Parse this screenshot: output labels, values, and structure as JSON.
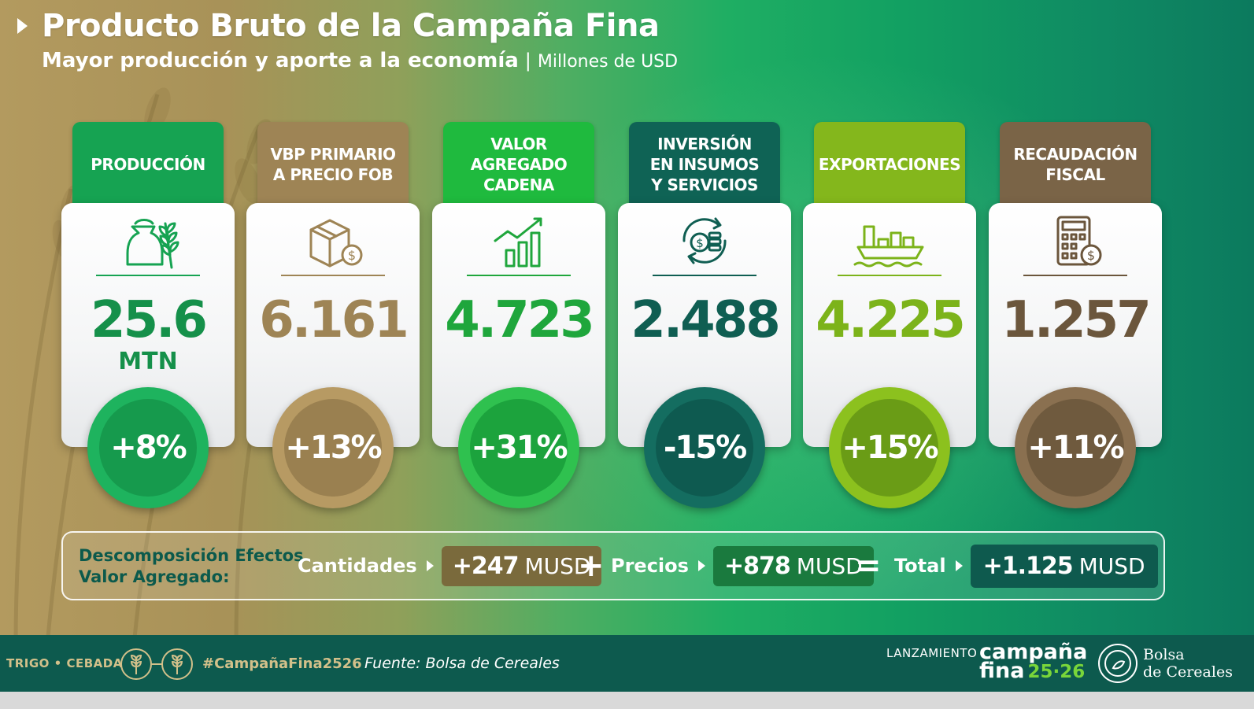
{
  "header": {
    "title": "Producto Bruto de la Campaña Fina",
    "subtitle": "Mayor producción y aporte a la economía",
    "subtitle_sep": "|",
    "subtitle_unit": "Millones de USD"
  },
  "cards": [
    {
      "label": "PRODUCCIÓN",
      "value": "25.6",
      "unit": "MTN",
      "change": "+8%",
      "icon": "sack-wheat-icon",
      "tab_color": "#16a352",
      "value_color": "#15904a"
    },
    {
      "label": "VBP PRIMARIO\nA PRECIO FOB",
      "value": "6.161",
      "unit": "",
      "change": "+13%",
      "icon": "box-dollar-icon",
      "tab_color": "#9e8455",
      "value_color": "#9e8455"
    },
    {
      "label": "VALOR\nAGREGADO\nCADENA",
      "value": "4.723",
      "unit": "",
      "change": "+31%",
      "icon": "bar-chart-growth-icon",
      "tab_color": "#1fba3e",
      "value_color": "#1fa63c"
    },
    {
      "label": "INVERSIÓN\nEN INSUMOS\nY SERVICIOS",
      "value": "2.488",
      "unit": "",
      "change": "-15%",
      "icon": "coins-cycle-icon",
      "tab_color": "#0f6355",
      "value_color": "#0f5e52"
    },
    {
      "label": "EXPORTACIONES",
      "value": "4.225",
      "unit": "",
      "change": "+15%",
      "icon": "cargo-ship-icon",
      "tab_color": "#84b71c",
      "value_color": "#7cb31a"
    },
    {
      "label": "RECAUDACIÓN\nFISCAL",
      "value": "1.257",
      "unit": "",
      "change": "+11%",
      "icon": "calculator-dollar-icon",
      "tab_color": "#7a6447",
      "value_color": "#6b563c"
    }
  ],
  "decomposition": {
    "label_line1": "Descomposición Efectos",
    "label_line2": "Valor Agregado:",
    "quantities_label": "Cantidades",
    "quantities_value": "+247",
    "prices_label": "Precios",
    "prices_value": "+878",
    "total_label": "Total",
    "total_value": "+1.125",
    "unit": "MUSD",
    "plus": "+",
    "equals": "="
  },
  "footer": {
    "crops": "TRIGO • CEBADA",
    "hashtag": "#CampañaFina2526",
    "source": "Fuente: Bolsa de Cereales",
    "launch": "LANZAMIENTO",
    "campaign_line1": "campaña",
    "campaign_line2": "fina",
    "campaign_year": "25·26",
    "org_line1": "Bolsa",
    "org_line2": "de Cereales"
  }
}
